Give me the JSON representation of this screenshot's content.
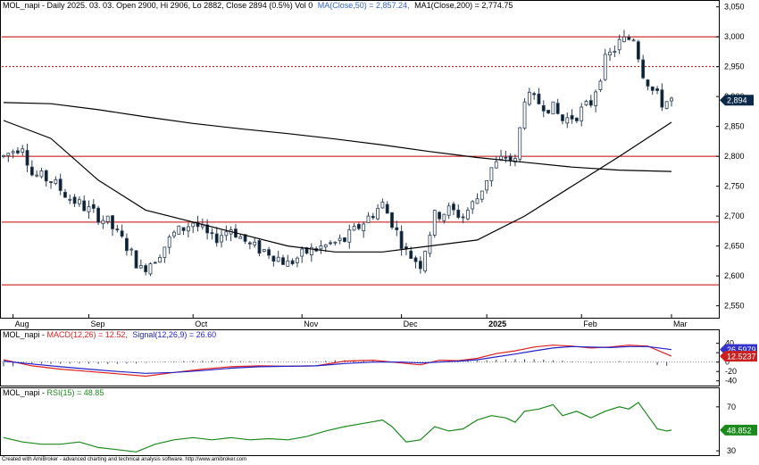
{
  "headers": {
    "price_prefix": "MOL_napi - Daily 2025. 03. 03. Open 2900, Hi 2906, Lo 2882, Close 2894 (0.5%) Vol 0",
    "ma50": "MA(Close,50) = 2,857.24,",
    "ma200": "MA1(Close,200) = 2,774.75",
    "macd_prefix": "MOL_napi - ",
    "macd_label": "MACD(12,26) = 12.52,",
    "signal_label": "Signal(12,26,9) = 26.60",
    "rsi_prefix": "MOL_napi - ",
    "rsi_label": "RSI(15) = 48.85"
  },
  "footer": "Created with AmiBroker - advanced charting and technical analysis software. http://www.amibroker.com",
  "colors": {
    "up_fill": "#ffffff",
    "down_fill": "#0b1f33",
    "candle_outline": "#2b3f57",
    "hline": "#c00000",
    "ma": "#000000",
    "macd": "#e02020",
    "signal": "#2222cc",
    "rsi": "#1a8a1a",
    "price_tag": "#0b2a4a",
    "macd_tag": "#3333cc",
    "signal_tag": "#cc2020",
    "rsi_tag": "#1a8a1a"
  },
  "chart_data": [
    {
      "type": "candlestick",
      "title": "MOL_napi - Daily",
      "ylim": [
        2530,
        3060
      ],
      "y_ticks": [
        "3,050",
        "3,000",
        "2,950",
        "2,900",
        "2,850",
        "2,800",
        "2,750",
        "2,700",
        "2,650",
        "2,600",
        "2,550"
      ],
      "y_tick_values": [
        3050,
        3000,
        2950,
        2900,
        2850,
        2800,
        2750,
        2700,
        2650,
        2600,
        2550
      ],
      "x_labels": [
        {
          "label": "Aug",
          "index": 2
        },
        {
          "label": "Sep",
          "index": 18
        },
        {
          "label": "Oct",
          "index": 40
        },
        {
          "label": "Nov",
          "index": 63
        },
        {
          "label": "Dec",
          "index": 84
        },
        {
          "label": "2025",
          "index": 102
        },
        {
          "label": "Feb",
          "index": 122
        },
        {
          "label": "Mar",
          "index": 141
        }
      ],
      "n_bars": 142,
      "last_close_label": "2,894",
      "last_close": 2894,
      "horizontal_lines": [
        {
          "value": 3000,
          "style": "solid"
        },
        {
          "value": 2950,
          "style": "dotted"
        },
        {
          "value": 2800,
          "style": "solid"
        },
        {
          "value": 2690,
          "style": "solid"
        },
        {
          "value": 2585,
          "style": "solid"
        }
      ],
      "close_path": [
        [
          0,
          2800
        ],
        [
          4,
          2820
        ],
        [
          6,
          2770
        ],
        [
          10,
          2760
        ],
        [
          14,
          2730
        ],
        [
          18,
          2710
        ],
        [
          22,
          2690
        ],
        [
          26,
          2650
        ],
        [
          29,
          2610
        ],
        [
          32,
          2630
        ],
        [
          36,
          2670
        ],
        [
          40,
          2690
        ],
        [
          44,
          2660
        ],
        [
          48,
          2680
        ],
        [
          52,
          2650
        ],
        [
          56,
          2640
        ],
        [
          60,
          2620
        ],
        [
          64,
          2640
        ],
        [
          68,
          2650
        ],
        [
          72,
          2660
        ],
        [
          76,
          2690
        ],
        [
          80,
          2720
        ],
        [
          82,
          2690
        ],
        [
          85,
          2640
        ],
        [
          88,
          2620
        ],
        [
          91,
          2700
        ],
        [
          94,
          2710
        ],
        [
          97,
          2700
        ],
        [
          100,
          2730
        ],
        [
          103,
          2780
        ],
        [
          106,
          2800
        ],
        [
          108,
          2790
        ],
        [
          110,
          2900
        ],
        [
          113,
          2890
        ],
        [
          116,
          2880
        ],
        [
          118,
          2860
        ],
        [
          121,
          2870
        ],
        [
          124,
          2890
        ],
        [
          127,
          2960
        ],
        [
          130,
          2990
        ],
        [
          133,
          3000
        ],
        [
          135,
          2940
        ],
        [
          137,
          2910
        ],
        [
          139,
          2890
        ],
        [
          141,
          2894
        ]
      ],
      "ma50_path": [
        [
          0,
          2860
        ],
        [
          10,
          2830
        ],
        [
          20,
          2760
        ],
        [
          30,
          2710
        ],
        [
          40,
          2690
        ],
        [
          50,
          2670
        ],
        [
          60,
          2650
        ],
        [
          70,
          2640
        ],
        [
          80,
          2640
        ],
        [
          90,
          2650
        ],
        [
          100,
          2660
        ],
        [
          110,
          2700
        ],
        [
          120,
          2750
        ],
        [
          130,
          2800
        ],
        [
          141,
          2857
        ]
      ],
      "ma200_path": [
        [
          0,
          2890
        ],
        [
          10,
          2888
        ],
        [
          20,
          2878
        ],
        [
          30,
          2866
        ],
        [
          40,
          2855
        ],
        [
          50,
          2846
        ],
        [
          60,
          2838
        ],
        [
          70,
          2829
        ],
        [
          80,
          2819
        ],
        [
          90,
          2808
        ],
        [
          100,
          2798
        ],
        [
          110,
          2790
        ],
        [
          120,
          2782
        ],
        [
          130,
          2777
        ],
        [
          141,
          2774.75
        ]
      ]
    },
    {
      "type": "line",
      "title": "MACD(12,26)",
      "ylim": [
        -50,
        45
      ],
      "y_ticks": [
        "40",
        "20",
        "0",
        "-20",
        "-40"
      ],
      "y_tick_values": [
        40,
        20,
        0,
        -20,
        -40
      ],
      "macd_label_value": "12.5237",
      "signal_label_value": "26.5979",
      "series": [
        {
          "name": "MACD(12,26)",
          "points": [
            [
              0,
              5
            ],
            [
              6,
              -8
            ],
            [
              12,
              -15
            ],
            [
              18,
              -20
            ],
            [
              24,
              -25
            ],
            [
              30,
              -30
            ],
            [
              36,
              -22
            ],
            [
              42,
              -15
            ],
            [
              48,
              -10
            ],
            [
              54,
              -8
            ],
            [
              60,
              -9
            ],
            [
              66,
              -8
            ],
            [
              72,
              2
            ],
            [
              78,
              4
            ],
            [
              84,
              -2
            ],
            [
              88,
              -6
            ],
            [
              92,
              4
            ],
            [
              96,
              3
            ],
            [
              100,
              8
            ],
            [
              104,
              18
            ],
            [
              108,
              24
            ],
            [
              112,
              32
            ],
            [
              116,
              36
            ],
            [
              120,
              34
            ],
            [
              124,
              30
            ],
            [
              128,
              32
            ],
            [
              132,
              36
            ],
            [
              136,
              34
            ],
            [
              141,
              12.52
            ]
          ]
        },
        {
          "name": "Signal(12,26,9)",
          "points": [
            [
              0,
              2
            ],
            [
              6,
              -4
            ],
            [
              12,
              -10
            ],
            [
              18,
              -15
            ],
            [
              24,
              -20
            ],
            [
              30,
              -24
            ],
            [
              36,
              -22
            ],
            [
              42,
              -18
            ],
            [
              48,
              -13
            ],
            [
              54,
              -10
            ],
            [
              60,
              -9
            ],
            [
              66,
              -8
            ],
            [
              72,
              -3
            ],
            [
              78,
              0
            ],
            [
              84,
              0
            ],
            [
              88,
              -2
            ],
            [
              92,
              0
            ],
            [
              96,
              2
            ],
            [
              100,
              5
            ],
            [
              104,
              11
            ],
            [
              108,
              17
            ],
            [
              112,
              24
            ],
            [
              116,
              30
            ],
            [
              120,
              33
            ],
            [
              124,
              32
            ],
            [
              128,
              31
            ],
            [
              132,
              33
            ],
            [
              136,
              33
            ],
            [
              141,
              26.6
            ]
          ]
        }
      ],
      "histogram": [
        [
          4,
          -3
        ],
        [
          10,
          -4
        ],
        [
          16,
          -3
        ],
        [
          22,
          -4
        ],
        [
          28,
          -3
        ],
        [
          34,
          1
        ],
        [
          40,
          3
        ],
        [
          46,
          3
        ],
        [
          52,
          2
        ],
        [
          58,
          1
        ],
        [
          64,
          0
        ],
        [
          70,
          4
        ],
        [
          76,
          4
        ],
        [
          82,
          -1
        ],
        [
          88,
          -3
        ],
        [
          94,
          3
        ],
        [
          100,
          3
        ],
        [
          106,
          6
        ],
        [
          112,
          6
        ],
        [
          118,
          3
        ],
        [
          124,
          -2
        ],
        [
          130,
          2
        ],
        [
          136,
          -1
        ],
        [
          138,
          -6
        ],
        [
          141,
          -9
        ]
      ]
    },
    {
      "type": "line",
      "title": "RSI(15)",
      "ylim": [
        26,
        78
      ],
      "y_ticks": [
        "70",
        "30"
      ],
      "y_tick_values": [
        70,
        30
      ],
      "rsi_label_value": "48.852",
      "series": [
        {
          "name": "RSI(15)",
          "points": [
            [
              0,
              42
            ],
            [
              4,
              38
            ],
            [
              8,
              36
            ],
            [
              12,
              36
            ],
            [
              16,
              38
            ],
            [
              20,
              33
            ],
            [
              24,
              31
            ],
            [
              28,
              29
            ],
            [
              32,
              36
            ],
            [
              36,
              40
            ],
            [
              40,
              42
            ],
            [
              44,
              40
            ],
            [
              48,
              42
            ],
            [
              52,
              40
            ],
            [
              56,
              41
            ],
            [
              60,
              40
            ],
            [
              64,
              43
            ],
            [
              68,
              48
            ],
            [
              72,
              52
            ],
            [
              76,
              55
            ],
            [
              80,
              58
            ],
            [
              82,
              52
            ],
            [
              85,
              38
            ],
            [
              88,
              40
            ],
            [
              91,
              52
            ],
            [
              94,
              48
            ],
            [
              97,
              50
            ],
            [
              100,
              58
            ],
            [
              103,
              62
            ],
            [
              106,
              60
            ],
            [
              108,
              56
            ],
            [
              110,
              66
            ],
            [
              113,
              68
            ],
            [
              116,
              72
            ],
            [
              118,
              62
            ],
            [
              121,
              66
            ],
            [
              124,
              60
            ],
            [
              127,
              66
            ],
            [
              130,
              70
            ],
            [
              132,
              68
            ],
            [
              134,
              74
            ],
            [
              136,
              62
            ],
            [
              138,
              50
            ],
            [
              140,
              48
            ],
            [
              141,
              48.85
            ]
          ]
        }
      ]
    }
  ]
}
